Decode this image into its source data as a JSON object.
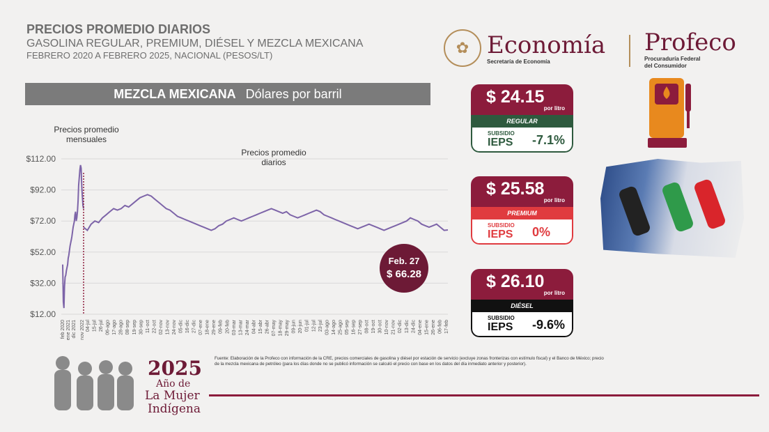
{
  "header": {
    "title": "PRECIOS PROMEDIO DIARIOS",
    "subtitle": "GASOLINA REGULAR, PREMIUM, DIÉSEL Y MEZCLA MEXICANA",
    "subtitle2": "FEBRERO 2020 A FEBRERO 2025, NACIONAL (PESOS/LT)"
  },
  "chart_header": {
    "bold": "MEZCLA MEXICANA",
    "normal": "Dólares por barril"
  },
  "logos": {
    "economia": "Economía",
    "economia_sub": "Secretaría de Economía",
    "profeco": "Profeco",
    "profeco_sub1": "Procuraduría Federal",
    "profeco_sub2": "del Consumidor"
  },
  "cards": {
    "regular": {
      "price": "$ 24.15",
      "unit": "por litro",
      "label": "REGULAR",
      "subsidio": "SUBSIDIO",
      "ieps": "IEPS",
      "pct": "-7.1%"
    },
    "premium": {
      "price": "$ 25.58",
      "unit": "por litro",
      "label": "PREMIUM",
      "subsidio": "SUBSIDIO",
      "ieps": "IEPS",
      "pct": "0%"
    },
    "diesel": {
      "price": "$ 26.10",
      "unit": "por litro",
      "label": "DIÉSEL",
      "subsidio": "SUBSIDIO",
      "ieps": "IEPS",
      "pct": "-9.6%"
    }
  },
  "colors": {
    "maroon": "#8c1c3c",
    "regular": "#2e5a3e",
    "premium": "#e03b3f",
    "diesel": "#111111",
    "line": "#7d64a8"
  },
  "footnote": "Fuente: Elaboración de la Profeco con información de la CRE, precios comerciales de gasolina y diésel por estación de servicio (excluye zonas fronterizas con estímulo fiscal) y el Banco de México; precio de la mezcla mexicana de petróleo (para los días donde no se publicó información se calculó el precio con base en los datos del día inmediato anterior y posterior).",
  "banner": {
    "year": "2025",
    "l1": "Año de",
    "l2": "La Mujer",
    "l3": "Indígena"
  },
  "chart_data": {
    "type": "line",
    "ylim": [
      12,
      112
    ],
    "yticks": [
      "$112.00",
      "$92.00",
      "$72.00",
      "$52.00",
      "$32.00",
      "$12.00"
    ],
    "ytick_values": [
      112,
      92,
      72,
      52,
      32,
      12
    ],
    "annotation_monthly": "Precios promedio mensuales",
    "annotation_daily": "Precios promedio diarios",
    "callout_date": "Feb. 27",
    "callout_value": "$ 66.28",
    "monthly_labels": [
      "feb 2020",
      "ene 2021",
      "dic 2021",
      "nov 2022"
    ],
    "daily_labels": [
      "04-jul",
      "15-jul",
      "26-jul",
      "06-ago",
      "17-ago",
      "28-ago",
      "08-sep",
      "19-sep",
      "30-sep",
      "11-oct",
      "22-oct",
      "02-nov",
      "13-nov",
      "24-nov",
      "05-dic",
      "16-dic",
      "27-dic",
      "07-ene",
      "18-ene",
      "29-ene",
      "09-feb",
      "20-feb",
      "03-mar",
      "13-mar",
      "24-mar",
      "04-abr",
      "15-abr",
      "26-abr",
      "07-may",
      "18-may",
      "29-may",
      "09-jun",
      "20-jun",
      "01-jul",
      "12-jul",
      "23-jul",
      "03-ago",
      "14-ago",
      "25-ago",
      "05-sep",
      "16-sep",
      "27-sep",
      "08-oct",
      "19-oct",
      "30-oct",
      "10-nov",
      "21-nov",
      "02-dic",
      "13-dic",
      "24-dic",
      "04-ene",
      "15-ene",
      "26-ene",
      "06-feb",
      "17-feb"
    ],
    "monthly": [
      44,
      20,
      16,
      30,
      36,
      37,
      40,
      42,
      44,
      48,
      50,
      53,
      56,
      58,
      60,
      62,
      65,
      68,
      70,
      72,
      76,
      78,
      72,
      74,
      78,
      85,
      95,
      100,
      105,
      108,
      106,
      94,
      88,
      82,
      80
    ],
    "daily": [
      68,
      66,
      70,
      72,
      71,
      74,
      76,
      78,
      80,
      79,
      80,
      82,
      81,
      83,
      85,
      87,
      88,
      89,
      88,
      86,
      84,
      82,
      80,
      79,
      77,
      75,
      74,
      73,
      72,
      71,
      70,
      69,
      68,
      67,
      66,
      67,
      69,
      70,
      72,
      73,
      74,
      73,
      72,
      73,
      74,
      75,
      76,
      77,
      78,
      79,
      80,
      79,
      78,
      77,
      78,
      76,
      75,
      74,
      75,
      76,
      77,
      78,
      79,
      78,
      76,
      75,
      74,
      73,
      72,
      71,
      70,
      69,
      68,
      67,
      68,
      69,
      70,
      69,
      68,
      67,
      66,
      67,
      68,
      69,
      70,
      71,
      72,
      74,
      73,
      72,
      70,
      69,
      68,
      69,
      70,
      68,
      66,
      66.28
    ]
  }
}
